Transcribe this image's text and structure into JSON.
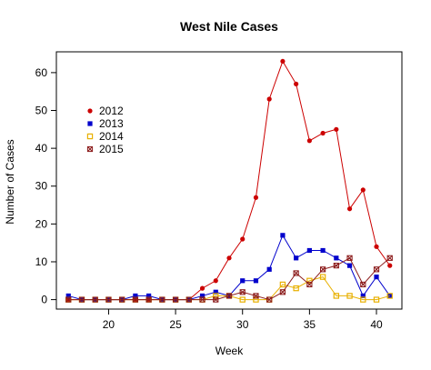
{
  "chart_data": {
    "type": "line",
    "title": "West Nile Cases",
    "xlabel": "Week",
    "ylabel": "Number of Cases",
    "xlim": [
      16.1,
      41.9
    ],
    "ylim": [
      -2.5,
      65.5
    ],
    "xticks": [
      20,
      25,
      30,
      35,
      40
    ],
    "yticks": [
      0,
      10,
      20,
      30,
      40,
      50,
      60
    ],
    "grid": false,
    "legend_position": "upper-left",
    "x": [
      17,
      18,
      19,
      20,
      21,
      22,
      23,
      24,
      25,
      26,
      27,
      28,
      29,
      30,
      31,
      32,
      33,
      34,
      35,
      36,
      37,
      38,
      39,
      40,
      41
    ],
    "series": [
      {
        "name": "2012",
        "color": "#cc0000",
        "marker": "circle",
        "values": [
          0,
          0,
          0,
          0,
          0,
          0,
          0,
          0,
          0,
          0,
          3,
          5,
          11,
          16,
          27,
          53,
          63,
          57,
          42,
          44,
          45,
          24,
          29,
          14,
          9
        ]
      },
      {
        "name": "2013",
        "color": "#0000cc",
        "marker": "square",
        "values": [
          1,
          0,
          0,
          0,
          0,
          1,
          1,
          0,
          0,
          0,
          1,
          2,
          1,
          5,
          5,
          8,
          17,
          11,
          13,
          13,
          11,
          9,
          1,
          6,
          1
        ]
      },
      {
        "name": "2014",
        "color": "#e8b000",
        "marker": "square-open",
        "values": [
          0,
          0,
          0,
          0,
          0,
          0,
          0,
          0,
          0,
          0,
          0,
          1,
          1,
          0,
          0,
          0,
          4,
          3,
          5,
          6,
          1,
          1,
          0,
          0,
          1
        ]
      },
      {
        "name": "2015",
        "color": "#8b1a1a",
        "marker": "cross-open",
        "values": [
          0,
          0,
          0,
          0,
          0,
          0,
          0,
          0,
          0,
          0,
          0,
          0,
          1,
          2,
          1,
          0,
          2,
          7,
          4,
          8,
          9,
          11,
          4,
          8,
          11
        ]
      }
    ]
  }
}
